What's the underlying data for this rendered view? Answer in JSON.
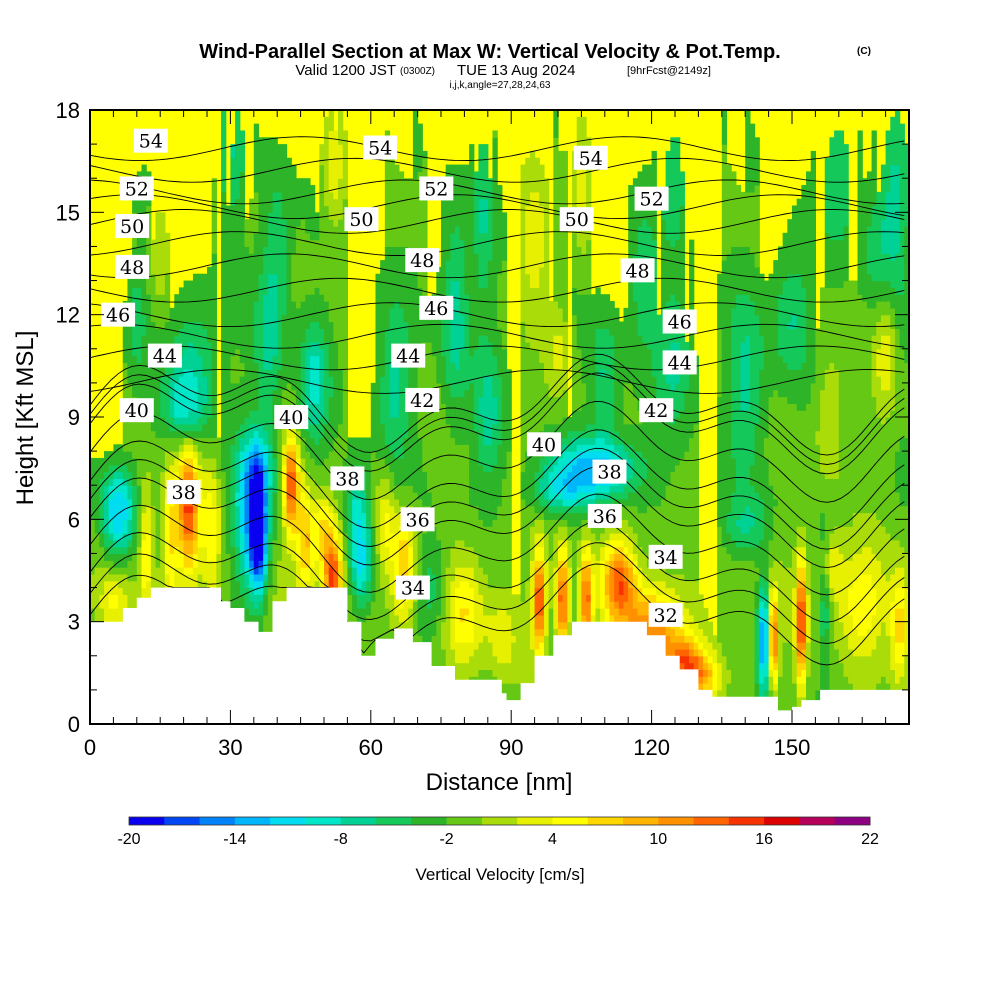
{
  "title": {
    "main": "Wind-Parallel Section at Max W: Vertical Velocity & Pot.Temp.",
    "main_mark": "(C)",
    "valid_a": "Valid 1200 JST",
    "valid_b": "(0300Z)",
    "valid_c": "TUE 13 Aug 2024",
    "valid_d": "[9hrFcst@2149z]",
    "indices": "i,j,k,angle=27,28,24,63"
  },
  "chart_data": {
    "type": "heatmap",
    "xlabel": "Distance [nm]",
    "ylabel": "Height [Kft MSL]",
    "xlim": [
      0,
      175
    ],
    "ylim": [
      0,
      18
    ],
    "x_ticks": [
      "0",
      "30",
      "60",
      "90",
      "120",
      "150"
    ],
    "y_ticks": [
      "0",
      "3",
      "6",
      "9",
      "12",
      "15",
      "18"
    ],
    "colorbar": {
      "label": "Vertical Velocity [cm/s]",
      "range": [
        -20,
        22
      ],
      "step": 2,
      "tick_labels": [
        "-20",
        "-14",
        "-8",
        "-2",
        "4",
        "10",
        "16",
        "22"
      ],
      "colors": [
        "#0a00f0",
        "#0046f5",
        "#0082f8",
        "#00b6fa",
        "#00dcf0",
        "#00e6c8",
        "#00d296",
        "#14c85a",
        "#2db428",
        "#64c814",
        "#aadc0a",
        "#e6f000",
        "#ffff00",
        "#ffd700",
        "#ffb400",
        "#ff9100",
        "#ff6400",
        "#f53200",
        "#dc0000",
        "#b4005a",
        "#8c0082"
      ]
    },
    "terrain_kft": [
      [
        0,
        3.0
      ],
      [
        5,
        3.0
      ],
      [
        7,
        3.4
      ],
      [
        10,
        3.7
      ],
      [
        13,
        4.0
      ],
      [
        26,
        4.0
      ],
      [
        28,
        3.6
      ],
      [
        30,
        3.4
      ],
      [
        33,
        3.0
      ],
      [
        36,
        2.7
      ],
      [
        39,
        3.6
      ],
      [
        42,
        4.0
      ],
      [
        52,
        4.0
      ],
      [
        55,
        3.0
      ],
      [
        58,
        2.0
      ],
      [
        61,
        2.5
      ],
      [
        65,
        2.8
      ],
      [
        69,
        2.4
      ],
      [
        73,
        1.7
      ],
      [
        78,
        1.3
      ],
      [
        86,
        1.3
      ],
      [
        88,
        0.9
      ],
      [
        89,
        0.7
      ],
      [
        92,
        1.2
      ],
      [
        95,
        2.0
      ],
      [
        99,
        2.6
      ],
      [
        103,
        3.0
      ],
      [
        115,
        3.0
      ],
      [
        119,
        2.6
      ],
      [
        123,
        2.0
      ],
      [
        126,
        1.6
      ],
      [
        130,
        1.0
      ],
      [
        133,
        0.8
      ],
      [
        145,
        0.8
      ],
      [
        147,
        0.4
      ],
      [
        150,
        0.5
      ],
      [
        152,
        0.7
      ],
      [
        156,
        1.0
      ],
      [
        175,
        1.0
      ]
    ],
    "theta_contour_labels": [
      {
        "value": "54",
        "x": 13,
        "y": 17.1
      },
      {
        "value": "54",
        "x": 62,
        "y": 16.9
      },
      {
        "value": "54",
        "x": 107,
        "y": 16.6
      },
      {
        "value": "52",
        "x": 10,
        "y": 15.7
      },
      {
        "value": "52",
        "x": 74,
        "y": 15.7
      },
      {
        "value": "52",
        "x": 120,
        "y": 15.4
      },
      {
        "value": "50",
        "x": 9,
        "y": 14.6
      },
      {
        "value": "50",
        "x": 58,
        "y": 14.8
      },
      {
        "value": "50",
        "x": 104,
        "y": 14.8
      },
      {
        "value": "48",
        "x": 9,
        "y": 13.4
      },
      {
        "value": "48",
        "x": 71,
        "y": 13.6
      },
      {
        "value": "48",
        "x": 117,
        "y": 13.3
      },
      {
        "value": "46",
        "x": 6,
        "y": 12.0
      },
      {
        "value": "46",
        "x": 74,
        "y": 12.2
      },
      {
        "value": "46",
        "x": 126,
        "y": 11.8
      },
      {
        "value": "44",
        "x": 16,
        "y": 10.8
      },
      {
        "value": "44",
        "x": 68,
        "y": 10.8
      },
      {
        "value": "44",
        "x": 126,
        "y": 10.6
      },
      {
        "value": "42",
        "x": 71,
        "y": 9.5
      },
      {
        "value": "42",
        "x": 121,
        "y": 9.2
      },
      {
        "value": "40",
        "x": 10,
        "y": 9.2
      },
      {
        "value": "40",
        "x": 43,
        "y": 9.0
      },
      {
        "value": "40",
        "x": 97,
        "y": 8.2
      },
      {
        "value": "38",
        "x": 20,
        "y": 6.8
      },
      {
        "value": "38",
        "x": 55,
        "y": 7.2
      },
      {
        "value": "38",
        "x": 111,
        "y": 7.4
      },
      {
        "value": "36",
        "x": 70,
        "y": 6.0
      },
      {
        "value": "36",
        "x": 110,
        "y": 6.1
      },
      {
        "value": "34",
        "x": 69,
        "y": 4.0
      },
      {
        "value": "34",
        "x": 123,
        "y": 4.9
      },
      {
        "value": "32",
        "x": 123,
        "y": 3.2
      }
    ]
  }
}
